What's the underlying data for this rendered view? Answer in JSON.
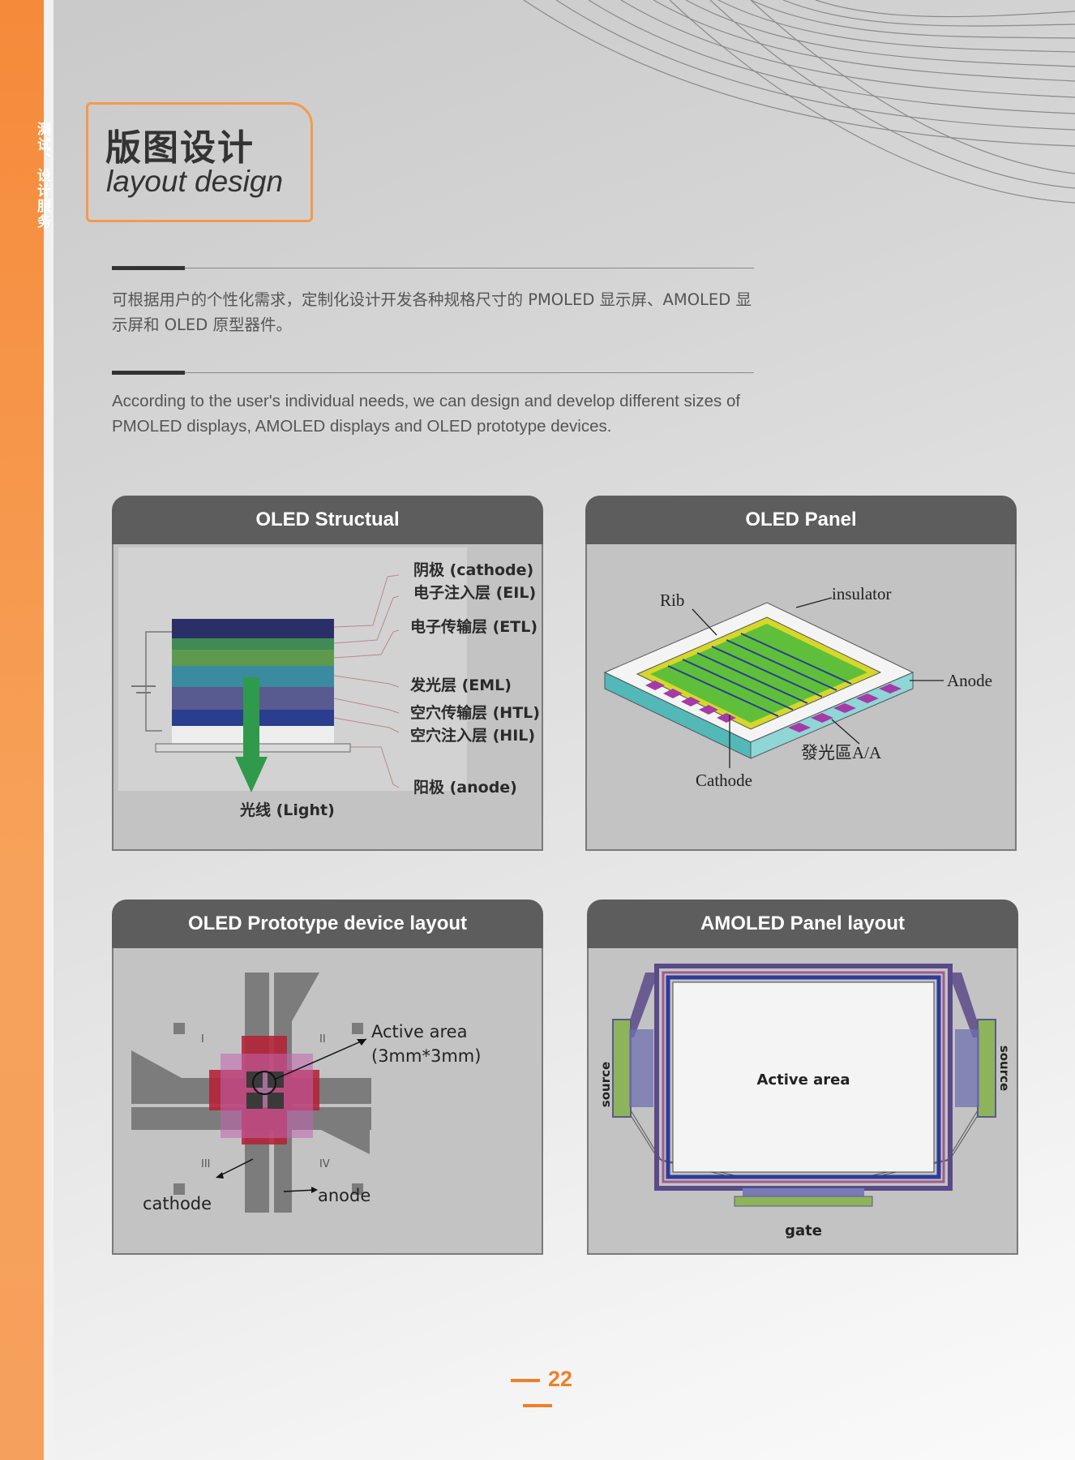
{
  "sidebar": {
    "label": "测试、设计服务"
  },
  "header": {
    "title_cn": "版图设计",
    "title_en": "layout design"
  },
  "intro": {
    "cn": "可根据用户的个性化需求，定制化设计开发各种规格尺寸的 PMOLED 显示屏、AMOLED 显示屏和 OLED 原型器件。",
    "en": "According to the user's individual needs, we can design and develop different sizes of PMOLED displays, AMOLED displays and OLED prototype devices."
  },
  "cards": [
    {
      "title": "OLED Structual",
      "labels": {
        "cathode": "阴极 (cathode)",
        "eil": "电子注入层 (EIL)",
        "etl": "电子传输层 (ETL)",
        "eml": "发光层 (EML)",
        "htl": "空穴传输层 (HTL)",
        "hil": "空穴注入层 (HIL)",
        "anode": "阳极 (anode)",
        "light": "光线 (Light)"
      }
    },
    {
      "title": "OLED Panel",
      "labels": {
        "rib": "Rib",
        "insulator": "insulator",
        "anode": "Anode",
        "aa": "發光區A/A",
        "cathode": "Cathode"
      }
    },
    {
      "title": "OLED Prototype device layout",
      "labels": {
        "active1": "Active area",
        "active2": "(3mm*3mm)",
        "cathode": "cathode",
        "anode": "anode",
        "q1": "I",
        "q2": "II",
        "q3": "III",
        "q4": "IV"
      }
    },
    {
      "title": "AMOLED Panel layout",
      "labels": {
        "active": "Active area",
        "source_left": "source",
        "source_right": "source",
        "gate": "gate"
      }
    }
  ],
  "footer": {
    "page": "22"
  },
  "colors": {
    "accent": "#f58a3a",
    "card_header": "#5d5d5d",
    "card_body": "#c3c3c3"
  }
}
